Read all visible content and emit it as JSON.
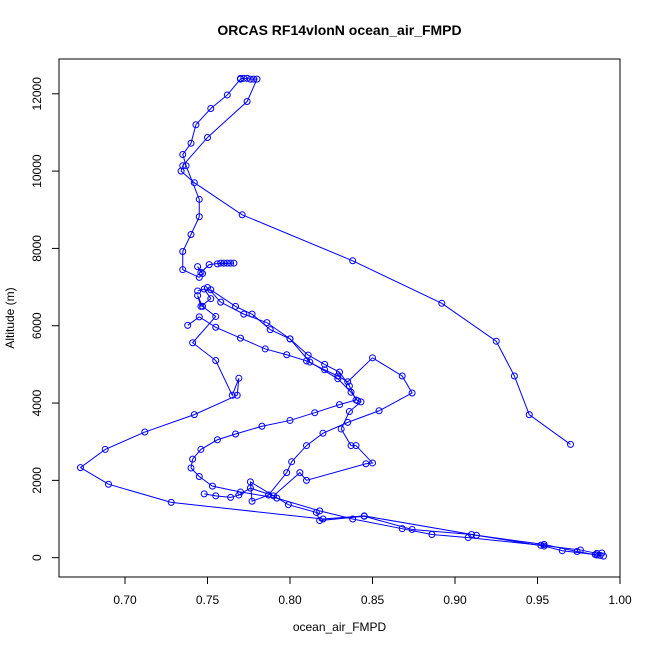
{
  "chart_data": {
    "type": "line",
    "title": "ORCAS RF14vlonN ocean_air_FMPD",
    "xlabel": "ocean_air_FMPD",
    "ylabel": "Altitude (m)",
    "xlim": [
      0.66,
      1.0
    ],
    "ylim": [
      -500,
      12900
    ],
    "x_ticks": [
      0.7,
      0.75,
      0.8,
      0.85,
      0.9,
      0.95,
      1.0
    ],
    "x_tick_labels": [
      "0.70",
      "0.75",
      "0.80",
      "0.85",
      "0.90",
      "0.95",
      "1.00"
    ],
    "y_ticks": [
      0,
      2000,
      4000,
      6000,
      8000,
      10000,
      12000
    ],
    "y_tick_labels": [
      "0",
      "2000",
      "4000",
      "6000",
      "8000",
      "10000",
      "12000"
    ],
    "grid": false,
    "series_color": "#0000ff",
    "series": [
      {
        "x": [
          0.77,
          0.772,
          0.774,
          0.776,
          0.778,
          0.78,
          0.774,
          0.75,
          0.735,
          0.734,
          0.742,
          0.771,
          0.838,
          0.892,
          0.925,
          0.936,
          0.945,
          0.97
        ],
        "y": [
          12400,
          12400,
          12400,
          12380,
          12380,
          12380,
          11800,
          10870,
          10140,
          10000,
          9700,
          8870,
          7680,
          6580,
          5600,
          4700,
          3700,
          2930
        ]
      },
      {
        "x": [
          0.77,
          0.762,
          0.752,
          0.743,
          0.74,
          0.735,
          0.737,
          0.745,
          0.745,
          0.74,
          0.735,
          0.735,
          0.745,
          0.747,
          0.744,
          0.746,
          0.751,
          0.758,
          0.76,
          0.762,
          0.764,
          0.766,
          0.756
        ],
        "y": [
          12380,
          11970,
          11620,
          11200,
          10720,
          10430,
          10140,
          9270,
          8820,
          8360,
          7920,
          7450,
          7250,
          7350,
          7530,
          7380,
          7580,
          7620,
          7620,
          7620,
          7620,
          7620,
          7600
        ]
      },
      {
        "x": [
          0.744,
          0.748,
          0.752,
          0.746,
          0.744,
          0.747,
          0.755,
          0.741,
          0.755,
          0.765,
          0.769,
          0.768,
          0.742,
          0.712,
          0.688,
          0.673,
          0.69,
          0.728,
          0.82,
          0.845,
          0.913,
          0.954,
          0.974,
          0.986,
          0.989
        ],
        "y": [
          6900,
          6950,
          6700,
          6500,
          6780,
          6500,
          6240,
          5560,
          5100,
          4200,
          4640,
          4200,
          3700,
          3250,
          2800,
          2330,
          1900,
          1430,
          1000,
          1080,
          580,
          340,
          160,
          70,
          120
        ]
      },
      {
        "x": [
          0.75,
          0.758,
          0.772,
          0.786,
          0.8,
          0.812,
          0.829,
          0.837,
          0.841,
          0.843,
          0.836,
          0.831,
          0.837,
          0.84,
          0.85,
          0.846,
          0.81,
          0.806,
          0.79,
          0.776,
          0.769,
          0.764,
          0.755,
          0.748
        ],
        "y": [
          6990,
          6610,
          6300,
          6080,
          5660,
          5060,
          4630,
          4280,
          4060,
          4030,
          3780,
          3330,
          2900,
          2900,
          2450,
          2430,
          2000,
          2200,
          1600,
          1800,
          1620,
          1560,
          1600,
          1650
        ]
      },
      {
        "x": [
          0.752,
          0.767,
          0.777,
          0.788,
          0.8,
          0.811,
          0.821,
          0.83,
          0.836,
          0.84,
          0.83,
          0.815,
          0.8,
          0.783,
          0.767,
          0.756,
          0.746,
          0.741,
          0.74,
          0.745,
          0.753,
          0.77,
          0.792,
          0.818,
          0.838,
          0.868,
          0.886,
          0.908,
          0.952,
          0.976,
          0.986,
          0.988
        ],
        "y": [
          6930,
          6500,
          6300,
          5900,
          5660,
          5240,
          5000,
          4800,
          4440,
          4080,
          3960,
          3750,
          3550,
          3400,
          3200,
          3050,
          2800,
          2550,
          2320,
          2100,
          1850,
          1700,
          1540,
          1210,
          1000,
          750,
          600,
          520,
          320,
          200,
          110,
          60
        ]
      },
      {
        "x": [
          0.738,
          0.745,
          0.755,
          0.77,
          0.785,
          0.798,
          0.81,
          0.821,
          0.829,
          0.835,
          0.85,
          0.868,
          0.874,
          0.854,
          0.835,
          0.82,
          0.81,
          0.801,
          0.798,
          0.787,
          0.777,
          0.776,
          0.799,
          0.816,
          0.818,
          0.845,
          0.874,
          0.91,
          0.954,
          0.965,
          0.985,
          0.99
        ],
        "y": [
          6010,
          6230,
          5960,
          5680,
          5400,
          5250,
          5090,
          4860,
          4700,
          4550,
          5170,
          4700,
          4260,
          3800,
          3500,
          3220,
          2900,
          2480,
          2200,
          1620,
          1460,
          1960,
          1370,
          1170,
          960,
          1070,
          730,
          600,
          300,
          180,
          80,
          40
        ]
      }
    ]
  }
}
